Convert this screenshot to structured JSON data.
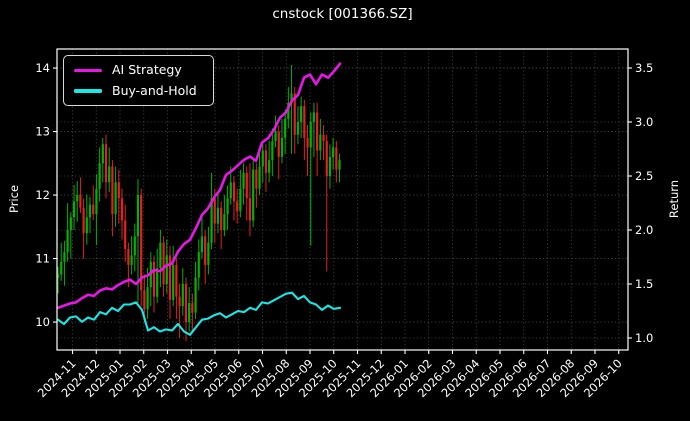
{
  "chart_data": {
    "type": "candlestick",
    "title": "cnstock [001366.SZ]",
    "legend_position": "upper-left",
    "grid": "dotted",
    "price_axis": {
      "label": "Price",
      "side": "left",
      "ticks": [
        "10",
        "11",
        "12",
        "13",
        "14"
      ],
      "range": [
        9.56,
        14.3
      ]
    },
    "return_axis": {
      "label": "Return",
      "side": "right",
      "ticks": [
        "1.0",
        "1.5",
        "2.0",
        "2.5",
        "3.0",
        "3.5"
      ],
      "range": [
        0.889,
        3.676
      ]
    },
    "x_axis": {
      "tick_labels": [
        "2024-11",
        "2024-12",
        "2025-01",
        "2025-02",
        "2025-03",
        "2025-04",
        "2025-05",
        "2025-06",
        "2025-07",
        "2025-08",
        "2025-09",
        "2025-10",
        "2025-11",
        "2025-12",
        "2026-01",
        "2026-02",
        "2026-03",
        "2026-04",
        "2026-05",
        "2026-06",
        "2026-07",
        "2026-08",
        "2026-09",
        "2026-10"
      ],
      "tick_positions": [
        0,
        1,
        2,
        3,
        4,
        5,
        6,
        7,
        8,
        9,
        10,
        11,
        12,
        13,
        14,
        15,
        16,
        17,
        18,
        19,
        20,
        21,
        22,
        23
      ],
      "range_months": [
        -0.653,
        23.39
      ]
    },
    "candles": {
      "axis": "price",
      "t0": -0.61,
      "dt": 0.1347,
      "ohlc": [
        [
          10.7,
          10.87,
          10.45,
          10.75
        ],
        [
          10.75,
          11.25,
          10.65,
          10.95
        ],
        [
          10.95,
          11.28,
          10.57,
          11.1
        ],
        [
          11.1,
          11.87,
          10.95,
          11.45
        ],
        [
          11.45,
          11.73,
          11.0,
          11.65
        ],
        [
          11.65,
          12.16,
          11.45,
          11.9
        ],
        [
          11.9,
          12.22,
          11.58,
          12.0
        ],
        [
          12.0,
          12.28,
          11.72,
          11.8
        ],
        [
          11.8,
          11.94,
          11.0,
          11.4
        ],
        [
          11.4,
          12.01,
          11.22,
          11.65
        ],
        [
          11.65,
          11.97,
          11.4,
          11.85
        ],
        [
          11.85,
          12.15,
          11.6,
          11.7
        ],
        [
          11.7,
          12.33,
          11.21,
          12.1
        ],
        [
          12.1,
          12.75,
          11.9,
          12.5
        ],
        [
          12.5,
          12.9,
          12.2,
          12.8
        ],
        [
          12.8,
          12.95,
          11.95,
          12.2
        ],
        [
          12.2,
          12.75,
          12.05,
          12.45
        ],
        [
          12.45,
          12.55,
          11.35,
          11.7
        ],
        [
          11.7,
          12.45,
          11.5,
          12.2
        ],
        [
          12.2,
          12.4,
          11.55,
          11.95
        ],
        [
          11.95,
          12.1,
          11.3,
          11.6
        ],
        [
          11.6,
          11.85,
          10.95,
          11.15
        ],
        [
          11.15,
          11.25,
          10.55,
          10.9
        ],
        [
          10.9,
          11.35,
          10.75,
          11.05
        ],
        [
          11.05,
          11.55,
          10.8,
          11.35
        ],
        [
          11.35,
          12.25,
          10.3,
          12.0
        ],
        [
          12.0,
          12.1,
          10.25,
          10.5
        ],
        [
          10.5,
          10.75,
          10.0,
          10.2
        ],
        [
          10.2,
          10.85,
          10.05,
          10.55
        ],
        [
          10.55,
          11.1,
          10.25,
          10.95
        ],
        [
          10.95,
          11.05,
          10.15,
          10.4
        ],
        [
          10.4,
          11.15,
          10.3,
          10.85
        ],
        [
          10.85,
          11.45,
          10.55,
          11.25
        ],
        [
          11.25,
          11.35,
          10.4,
          10.6
        ],
        [
          10.6,
          11.3,
          10.45,
          11.05
        ],
        [
          11.05,
          11.2,
          10.05,
          10.35
        ],
        [
          10.35,
          11.2,
          10.25,
          10.9
        ],
        [
          10.9,
          11.0,
          10.05,
          10.4
        ],
        [
          10.4,
          10.6,
          9.75,
          10.25
        ],
        [
          10.25,
          10.85,
          10.1,
          10.6
        ],
        [
          10.6,
          10.7,
          9.7,
          10.0
        ],
        [
          10.0,
          10.55,
          9.85,
          10.3
        ],
        [
          10.3,
          10.45,
          9.85,
          10.15
        ],
        [
          10.15,
          10.95,
          10.05,
          10.7
        ],
        [
          10.7,
          11.3,
          10.5,
          11.1
        ],
        [
          11.1,
          11.65,
          11.0,
          11.35
        ],
        [
          11.35,
          11.45,
          10.6,
          10.9
        ],
        [
          10.9,
          11.5,
          10.75,
          11.25
        ],
        [
          11.25,
          12.35,
          11.15,
          11.95
        ],
        [
          11.95,
          12.1,
          11.25,
          11.55
        ],
        [
          11.55,
          12.05,
          11.4,
          11.8
        ],
        [
          11.8,
          11.9,
          11.15,
          11.45
        ],
        [
          11.45,
          12.0,
          11.35,
          11.7
        ],
        [
          11.7,
          12.15,
          11.45,
          11.95
        ],
        [
          11.95,
          12.45,
          11.85,
          12.2
        ],
        [
          12.2,
          12.3,
          11.6,
          11.9
        ],
        [
          11.9,
          12.1,
          11.55,
          11.75
        ],
        [
          11.75,
          12.4,
          11.65,
          12.1
        ],
        [
          12.1,
          12.5,
          11.85,
          12.35
        ],
        [
          12.35,
          12.45,
          11.6,
          11.95
        ],
        [
          11.95,
          12.5,
          11.35,
          11.6
        ],
        [
          11.6,
          12.55,
          11.5,
          12.4
        ],
        [
          12.4,
          12.5,
          11.8,
          12.1
        ],
        [
          12.1,
          12.75,
          12.0,
          12.45
        ],
        [
          12.45,
          12.85,
          12.2,
          12.7
        ],
        [
          12.7,
          12.8,
          12.05,
          12.35
        ],
        [
          12.35,
          12.85,
          12.2,
          12.55
        ],
        [
          12.55,
          13.05,
          12.3,
          12.85
        ],
        [
          12.85,
          13.25,
          12.75,
          13.0
        ],
        [
          13.0,
          13.1,
          12.25,
          12.6
        ],
        [
          12.6,
          13.2,
          12.5,
          12.9
        ],
        [
          12.9,
          13.35,
          12.65,
          13.2
        ],
        [
          13.2,
          13.7,
          13.05,
          13.45
        ],
        [
          13.45,
          14.05,
          12.65,
          13.6
        ],
        [
          13.6,
          13.7,
          12.65,
          12.95
        ],
        [
          12.95,
          13.4,
          12.8,
          13.15
        ],
        [
          13.15,
          13.55,
          12.9,
          13.4
        ],
        [
          13.4,
          13.5,
          12.55,
          12.9
        ],
        [
          12.9,
          13.1,
          12.3,
          12.75
        ],
        [
          12.75,
          13.3,
          11.2,
          13.15
        ],
        [
          13.15,
          13.45,
          12.6,
          13.3
        ],
        [
          13.3,
          13.45,
          12.3,
          12.7
        ],
        [
          12.7,
          13.2,
          12.55,
          12.95
        ],
        [
          12.95,
          13.1,
          12.55,
          12.85
        ],
        [
          12.85,
          12.95,
          10.8,
          12.3
        ],
        [
          12.3,
          12.8,
          12.1,
          12.6
        ],
        [
          12.6,
          12.9,
          12.4,
          12.75
        ],
        [
          12.75,
          12.85,
          12.2,
          12.4
        ],
        [
          12.4,
          12.65,
          12.2,
          12.55
        ]
      ]
    },
    "series": [
      {
        "name": "AI Strategy",
        "axis": "return",
        "color": "#e817e8",
        "t0": -0.61,
        "dt": 0.2526,
        "values": [
          1.28,
          1.3,
          1.32,
          1.33,
          1.37,
          1.4,
          1.39,
          1.44,
          1.46,
          1.45,
          1.49,
          1.52,
          1.54,
          1.5,
          1.56,
          1.58,
          1.63,
          1.62,
          1.67,
          1.69,
          1.8,
          1.87,
          1.91,
          2.02,
          2.14,
          2.2,
          2.3,
          2.37,
          2.51,
          2.55,
          2.6,
          2.65,
          2.68,
          2.64,
          2.81,
          2.85,
          2.93,
          3.04,
          3.09,
          3.2,
          3.25,
          3.41,
          3.44,
          3.35,
          3.44,
          3.41,
          3.47,
          3.54
        ]
      },
      {
        "name": "Buy-and-Hold",
        "axis": "return",
        "color": "#17e9e9",
        "t0": -0.61,
        "dt": 0.2526,
        "values": [
          1.17,
          1.13,
          1.19,
          1.2,
          1.15,
          1.19,
          1.17,
          1.24,
          1.22,
          1.28,
          1.25,
          1.31,
          1.31,
          1.33,
          1.26,
          1.07,
          1.1,
          1.06,
          1.08,
          1.07,
          1.13,
          1.06,
          1.03,
          1.1,
          1.17,
          1.18,
          1.21,
          1.23,
          1.19,
          1.22,
          1.25,
          1.24,
          1.28,
          1.26,
          1.33,
          1.32,
          1.35,
          1.38,
          1.41,
          1.42,
          1.36,
          1.39,
          1.33,
          1.31,
          1.26,
          1.3,
          1.27,
          1.28
        ]
      }
    ],
    "colors": {
      "background": "#000000",
      "text": "#ffffff",
      "spine": "#ffffff",
      "grid": "#9a9a9a",
      "up_candle": "#00b300",
      "down_candle": "#e62020",
      "ai_strategy": "#e817e8",
      "buy_and_hold": "#17e9e9"
    }
  }
}
